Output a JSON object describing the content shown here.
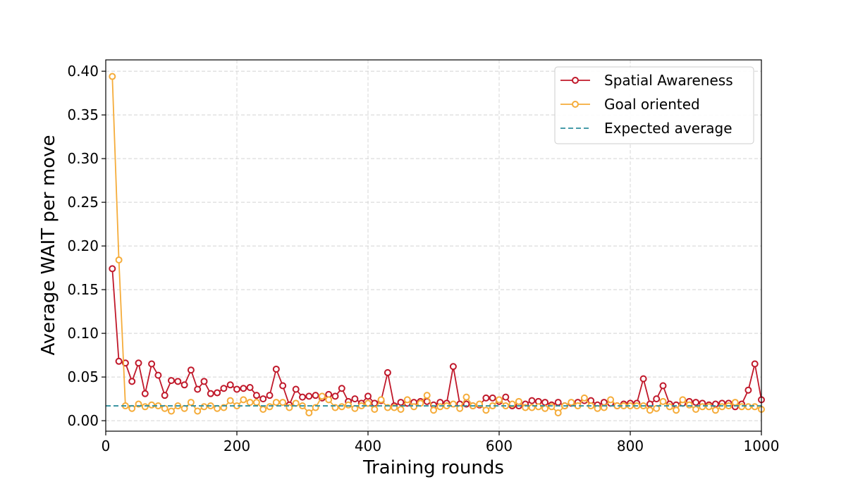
{
  "chart_data": {
    "type": "line",
    "title": "",
    "xlabel": "Training rounds",
    "ylabel": "Average WAIT per move",
    "xlim": [
      0,
      1000
    ],
    "ylim": [
      -0.012,
      0.413
    ],
    "x_ticks": [
      0,
      200,
      400,
      600,
      800,
      1000
    ],
    "y_ticks": [
      0.0,
      0.05,
      0.1,
      0.15,
      0.2,
      0.25,
      0.3,
      0.35,
      0.4
    ],
    "grid": true,
    "legend_position": "top-right",
    "x": [
      10,
      20,
      30,
      40,
      50,
      60,
      70,
      80,
      90,
      100,
      110,
      120,
      130,
      140,
      150,
      160,
      170,
      180,
      190,
      200,
      210,
      220,
      230,
      240,
      250,
      260,
      270,
      280,
      290,
      300,
      310,
      320,
      330,
      340,
      350,
      360,
      370,
      380,
      390,
      400,
      410,
      420,
      430,
      440,
      450,
      460,
      470,
      480,
      490,
      500,
      510,
      520,
      530,
      540,
      550,
      560,
      570,
      580,
      590,
      600,
      610,
      620,
      630,
      640,
      650,
      660,
      670,
      680,
      690,
      700,
      710,
      720,
      730,
      740,
      750,
      760,
      770,
      780,
      790,
      800,
      810,
      820,
      830,
      840,
      850,
      860,
      870,
      880,
      890,
      900,
      910,
      920,
      930,
      940,
      950,
      960,
      970,
      980,
      990,
      1000
    ],
    "series": [
      {
        "name": "Spatial Awareness",
        "color": "#c0182a",
        "style": "line-with-hollow-circles",
        "values": [
          0.174,
          0.068,
          0.066,
          0.045,
          0.066,
          0.031,
          0.065,
          0.052,
          0.029,
          0.046,
          0.045,
          0.041,
          0.058,
          0.036,
          0.045,
          0.031,
          0.032,
          0.037,
          0.041,
          0.036,
          0.037,
          0.038,
          0.029,
          0.025,
          0.029,
          0.059,
          0.04,
          0.018,
          0.036,
          0.027,
          0.028,
          0.029,
          0.026,
          0.03,
          0.028,
          0.037,
          0.022,
          0.025,
          0.02,
          0.028,
          0.02,
          0.023,
          0.055,
          0.017,
          0.021,
          0.02,
          0.021,
          0.022,
          0.022,
          0.018,
          0.021,
          0.02,
          0.062,
          0.019,
          0.019,
          0.017,
          0.018,
          0.026,
          0.026,
          0.022,
          0.027,
          0.017,
          0.017,
          0.019,
          0.023,
          0.022,
          0.021,
          0.018,
          0.021,
          0.017,
          0.02,
          0.021,
          0.023,
          0.023,
          0.018,
          0.021,
          0.02,
          0.017,
          0.019,
          0.02,
          0.02,
          0.048,
          0.019,
          0.025,
          0.04,
          0.019,
          0.018,
          0.02,
          0.022,
          0.021,
          0.02,
          0.018,
          0.019,
          0.02,
          0.02,
          0.016,
          0.019,
          0.035,
          0.065,
          0.024
        ]
      },
      {
        "name": "Goal oriented",
        "color": "#f5ac3a",
        "style": "line-with-hollow-circles",
        "values": [
          0.394,
          0.184,
          0.017,
          0.014,
          0.019,
          0.016,
          0.018,
          0.017,
          0.014,
          0.011,
          0.017,
          0.014,
          0.021,
          0.011,
          0.016,
          0.017,
          0.014,
          0.015,
          0.023,
          0.017,
          0.024,
          0.021,
          0.021,
          0.013,
          0.016,
          0.021,
          0.021,
          0.015,
          0.02,
          0.017,
          0.009,
          0.015,
          0.028,
          0.024,
          0.015,
          0.016,
          0.018,
          0.014,
          0.017,
          0.02,
          0.013,
          0.024,
          0.015,
          0.015,
          0.013,
          0.024,
          0.016,
          0.02,
          0.029,
          0.012,
          0.016,
          0.017,
          0.019,
          0.014,
          0.027,
          0.017,
          0.019,
          0.012,
          0.017,
          0.024,
          0.017,
          0.019,
          0.022,
          0.015,
          0.015,
          0.016,
          0.014,
          0.016,
          0.009,
          0.017,
          0.021,
          0.017,
          0.026,
          0.017,
          0.014,
          0.015,
          0.024,
          0.017,
          0.017,
          0.017,
          0.017,
          0.017,
          0.012,
          0.014,
          0.022,
          0.016,
          0.012,
          0.024,
          0.018,
          0.013,
          0.016,
          0.016,
          0.012,
          0.016,
          0.017,
          0.021,
          0.016,
          0.016,
          0.016,
          0.013
        ]
      },
      {
        "name": "Expected average",
        "color": "#2f8f9d",
        "style": "dashed",
        "constant": 0.017
      }
    ]
  }
}
